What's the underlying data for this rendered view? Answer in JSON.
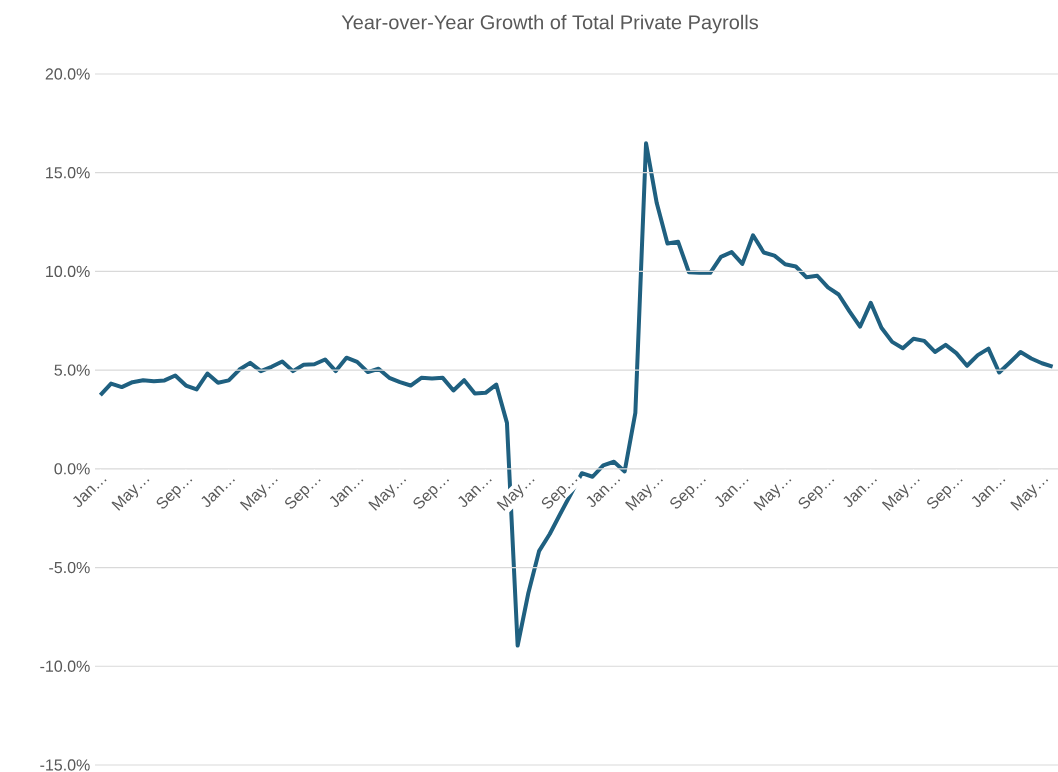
{
  "chart_data": {
    "type": "line",
    "title": "Year-over-Year Growth of Total Private Payrolls",
    "categories": [
      "Jan…",
      null,
      null,
      null,
      "May…",
      null,
      null,
      null,
      "Sep…",
      null,
      null,
      null,
      "Jan…",
      null,
      null,
      null,
      "May…",
      null,
      null,
      null,
      "Sep…",
      null,
      null,
      null,
      "Jan…",
      null,
      null,
      null,
      "May…",
      null,
      null,
      null,
      "Sep…",
      null,
      null,
      null,
      "Jan…",
      null,
      null,
      null,
      "May…",
      null,
      null,
      null,
      "Sep…",
      null,
      null,
      null,
      "Jan…",
      null,
      null,
      null,
      "May…",
      null,
      null,
      null,
      "Sep…",
      null,
      null,
      null,
      "Jan…",
      null,
      null,
      null,
      "May…",
      null,
      null,
      null,
      "Sep…",
      null,
      null,
      null,
      "Jan…",
      null,
      null,
      null,
      "May…",
      null,
      null,
      null,
      "Sep…",
      null,
      null,
      null,
      "Jan…",
      null,
      null,
      null,
      "May…",
      null
    ],
    "values": [
      3.73,
      4.32,
      4.14,
      4.39,
      4.49,
      4.44,
      4.48,
      4.73,
      4.22,
      4.02,
      4.83,
      4.36,
      4.48,
      5.03,
      5.37,
      4.95,
      5.17,
      5.44,
      4.95,
      5.27,
      5.3,
      5.54,
      4.95,
      5.63,
      5.42,
      4.9,
      5.07,
      4.61,
      4.39,
      4.22,
      4.61,
      4.58,
      4.61,
      3.97,
      4.49,
      3.82,
      3.85,
      4.27,
      2.33,
      -8.95,
      -6.29,
      -4.17,
      -3.3,
      -2.26,
      -1.25,
      -0.22,
      -0.4,
      0.18,
      0.36,
      -0.13,
      2.83,
      16.49,
      13.46,
      11.41,
      11.5,
      9.96,
      9.93,
      9.93,
      10.74,
      10.98,
      10.38,
      11.83,
      10.96,
      10.8,
      10.36,
      10.25,
      9.7,
      9.78,
      9.19,
      8.83,
      7.99,
      7.2,
      8.41,
      7.15,
      6.43,
      6.11,
      6.59,
      6.48,
      5.92,
      6.28,
      5.86,
      5.22,
      5.76,
      6.09,
      4.88,
      5.39,
      5.92,
      5.59,
      5.35,
      5.18
    ],
    "color": "#1f6080",
    "ylim": [
      -15,
      20
    ],
    "yticks": [
      {
        "value": -15,
        "label": "-15.0%"
      },
      {
        "value": -10,
        "label": "-10.0%"
      },
      {
        "value": -5,
        "label": "-5.0%"
      },
      {
        "value": 0,
        "label": "0.0%"
      },
      {
        "value": 5,
        "label": "5.0%"
      },
      {
        "value": 10,
        "label": "10.0%"
      },
      {
        "value": 15,
        "label": "15.0%"
      },
      {
        "value": 20,
        "label": "20.0%"
      }
    ],
    "grid": "y"
  }
}
